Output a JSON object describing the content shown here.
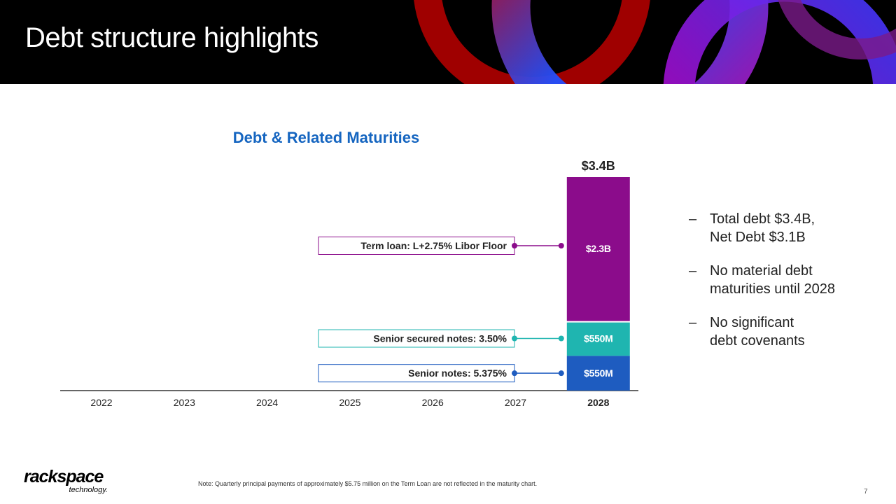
{
  "slide": {
    "title": "Debt structure highlights",
    "page_number": "7",
    "note": "Note: Quarterly principal payments of approximately $5.75 million on the Term Loan are not reflected in the maturity chart."
  },
  "logo": {
    "main": "rackspace",
    "sub": "technology."
  },
  "bullets": [
    "Total debt $3.4B,\nNet Debt $3.1B",
    "No material debt\nmaturities until 2028",
    "No significant\ndebt covenants"
  ],
  "colors": {
    "term_loan": "#8b0c8b",
    "senior_secured": "#1fb5b0",
    "senior_notes": "#1e5cc0",
    "title_blue": "#1565c0"
  },
  "chart_data": {
    "type": "bar",
    "stacked": true,
    "title": "Debt & Related Maturities",
    "categories": [
      "2022",
      "2023",
      "2024",
      "2025",
      "2026",
      "2027",
      "2028"
    ],
    "highlight_category": "2028",
    "unit": "$M",
    "total_label": "$3.4B",
    "series": [
      {
        "key": "senior_notes",
        "values": [
          0,
          0,
          0,
          0,
          0,
          0,
          550
        ],
        "value_label": "$550M",
        "callout": "Senior notes: 5.375%"
      },
      {
        "key": "senior_secured",
        "values": [
          0,
          0,
          0,
          0,
          0,
          0,
          550
        ],
        "value_label": "$550M",
        "callout": "Senior secured notes: 3.50%"
      },
      {
        "key": "term_loan",
        "values": [
          0,
          0,
          0,
          0,
          0,
          0,
          2300
        ],
        "value_label": "$2.3B",
        "callout": "Term loan: L+2.75% Libor Floor"
      }
    ]
  }
}
